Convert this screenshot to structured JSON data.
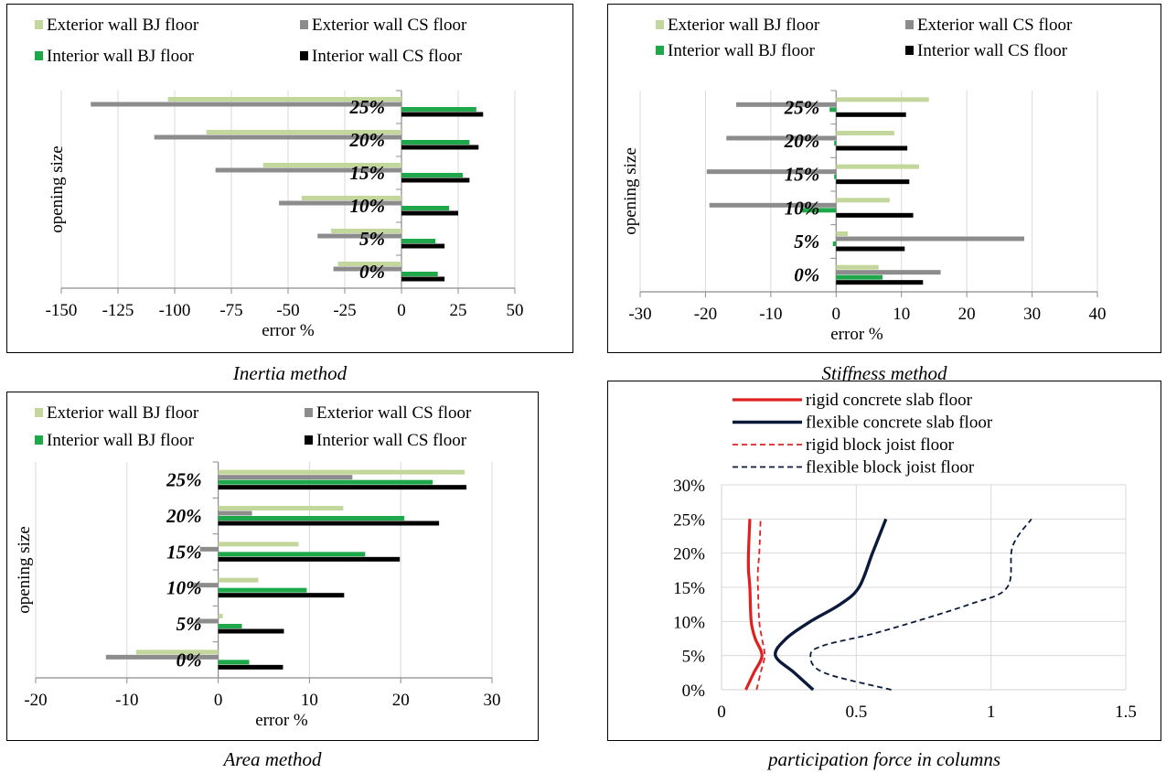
{
  "colors": {
    "ext_bj": "#c3d69b",
    "ext_cs": "#8c8c8c",
    "int_bj": "#1ea84a",
    "int_cs": "#000000",
    "rigid": "#e02020",
    "flexible": "#0b1a3a",
    "grid": "#d9d9d9",
    "axis": "#8c8c8c"
  },
  "captions": {
    "inertia": "Inertia method",
    "stiffness": "Stiffness method",
    "area": "Area method",
    "participation": "participation force in columns"
  },
  "chart_data": [
    {
      "id": "inertia",
      "type": "bar",
      "orientation": "horizontal",
      "title": "",
      "xlabel": "error %",
      "ylabel": "opening size",
      "xlim": [
        -150,
        50
      ],
      "xticks": [
        -150,
        -125,
        -100,
        -75,
        -50,
        -25,
        0,
        25,
        50
      ],
      "xtick_labels": [
        "-150",
        "-125",
        "-100",
        "-75",
        "-50",
        "-25",
        "0",
        "25",
        "50"
      ],
      "categories": [
        "0%",
        "5%",
        "10%",
        "15%",
        "20%",
        "25%"
      ],
      "legend": {
        "position": "top",
        "entries": [
          "Exterior wall BJ floor",
          "Exterior wall CS floor",
          "Interior wall BJ floor",
          "Interior wall CS floor"
        ]
      },
      "series": [
        {
          "name": "Exterior wall BJ floor",
          "values": [
            -28,
            -31,
            -44,
            -61,
            -86,
            -103
          ]
        },
        {
          "name": "Exterior wall CS floor",
          "values": [
            -30,
            -37,
            -54,
            -82,
            -109,
            -137
          ]
        },
        {
          "name": "Interior wall BJ floor",
          "values": [
            16,
            15,
            21,
            27,
            30,
            33
          ]
        },
        {
          "name": "Interior wall CS floor",
          "values": [
            19,
            19,
            25,
            30,
            34,
            36
          ]
        }
      ]
    },
    {
      "id": "stiffness",
      "type": "bar",
      "orientation": "horizontal",
      "title": "",
      "xlabel": "error %",
      "ylabel": "opening size",
      "xlim": [
        -30,
        40
      ],
      "xticks": [
        -30,
        -20,
        -10,
        0,
        10,
        20,
        30,
        40
      ],
      "xtick_labels": [
        "-30",
        "-20",
        "-10",
        "0",
        "10",
        "20",
        "30",
        "40"
      ],
      "categories": [
        "0%",
        "5%",
        "10%",
        "15%",
        "20%",
        "25%"
      ],
      "legend": {
        "position": "top",
        "entries": [
          "Exterior wall BJ floor",
          "Exterior wall CS floor",
          "Interior wall BJ floor",
          "Interior wall CS floor"
        ]
      },
      "series": [
        {
          "name": "Exterior wall BJ floor",
          "values": [
            6.5,
            1.8,
            8.2,
            12.7,
            8.9,
            14.2
          ]
        },
        {
          "name": "Exterior wall CS floor",
          "values": [
            16,
            28.8,
            -19.4,
            -19.8,
            -16.8,
            -15.3
          ]
        },
        {
          "name": "Interior wall BJ floor",
          "values": [
            7.1,
            -0.5,
            -5.3,
            -0.3,
            -0.3,
            -1
          ]
        },
        {
          "name": "Interior wall CS floor",
          "values": [
            13.3,
            10.5,
            11.8,
            11.2,
            10.9,
            10.7
          ]
        }
      ]
    },
    {
      "id": "area",
      "type": "bar",
      "orientation": "horizontal",
      "title": "",
      "xlabel": "error %",
      "ylabel": "opening size",
      "xlim": [
        -20,
        30
      ],
      "xticks": [
        -20,
        -10,
        0,
        10,
        20,
        30
      ],
      "xtick_labels": [
        "-20",
        "-10",
        "0",
        "10",
        "20",
        "30"
      ],
      "categories": [
        "0%",
        "5%",
        "10%",
        "15%",
        "20%",
        "25%"
      ],
      "legend": {
        "position": "top",
        "entries": [
          "Exterior wall BJ floor",
          "Exterior wall CS floor",
          "Interior wall BJ floor",
          "Interior wall CS floor"
        ]
      },
      "series": [
        {
          "name": "Exterior wall BJ floor",
          "values": [
            -9,
            0.5,
            4.4,
            8.8,
            13.7,
            27
          ]
        },
        {
          "name": "Exterior wall CS floor",
          "values": [
            -12.3,
            -2.5,
            -3,
            -2,
            3.7,
            14.7
          ]
        },
        {
          "name": "Interior wall BJ floor",
          "values": [
            3.4,
            2.6,
            9.7,
            16.1,
            20.4,
            23.5
          ]
        },
        {
          "name": "Interior wall CS floor",
          "values": [
            7.1,
            7.2,
            13.8,
            19.9,
            24.2,
            27.2
          ]
        }
      ]
    },
    {
      "id": "participation",
      "type": "line",
      "title": "",
      "xlabel": "",
      "ylabel": "",
      "xlim": [
        0,
        1.5
      ],
      "ylim": [
        0,
        0.3
      ],
      "xticks": [
        0,
        0.5,
        1,
        1.5
      ],
      "xtick_labels": [
        "0",
        "0.5",
        "1",
        "1.5"
      ],
      "yticks": [
        0,
        0.05,
        0.1,
        0.15,
        0.2,
        0.25,
        0.3
      ],
      "ytick_labels": [
        "0%",
        "5%",
        "10%",
        "15%",
        "20%",
        "25%",
        "30%"
      ],
      "legend": {
        "position": "top",
        "entries": [
          "rigid concrete slab floor",
          "flexible concrete slab floor",
          "rigid block joist floor",
          "flexible block joist floor"
        ]
      },
      "series": [
        {
          "name": "rigid concrete slab floor",
          "style": "solid",
          "weight": "thin",
          "x": [
            0.09,
            0.12,
            0.15,
            0.125,
            0.11,
            0.105,
            0.1,
            0.1,
            0.105
          ],
          "y": [
            0,
            0.025,
            0.05,
            0.075,
            0.1,
            0.15,
            0.175,
            0.2,
            0.25
          ]
        },
        {
          "name": "flexible concrete slab floor",
          "style": "solid",
          "weight": "thick",
          "x": [
            0.34,
            0.27,
            0.2,
            0.24,
            0.33,
            0.44,
            0.51,
            0.56,
            0.61
          ],
          "y": [
            0,
            0.025,
            0.05,
            0.075,
            0.1,
            0.125,
            0.15,
            0.2,
            0.25
          ]
        },
        {
          "name": "rigid block joist floor",
          "style": "dashed",
          "weight": "thin",
          "x": [
            0.13,
            0.145,
            0.16,
            0.15,
            0.14,
            0.135,
            0.135,
            0.14,
            0.145
          ],
          "y": [
            0,
            0.025,
            0.05,
            0.075,
            0.1,
            0.15,
            0.175,
            0.2,
            0.25
          ]
        },
        {
          "name": "flexible block joist floor",
          "style": "dashed",
          "weight": "thin",
          "x": [
            0.63,
            0.38,
            0.33,
            0.38,
            0.59,
            0.92,
            1.06,
            1.08,
            1.15
          ],
          "y": [
            0,
            0.025,
            0.05,
            0.065,
            0.085,
            0.125,
            0.15,
            0.21,
            0.25
          ]
        }
      ]
    }
  ]
}
